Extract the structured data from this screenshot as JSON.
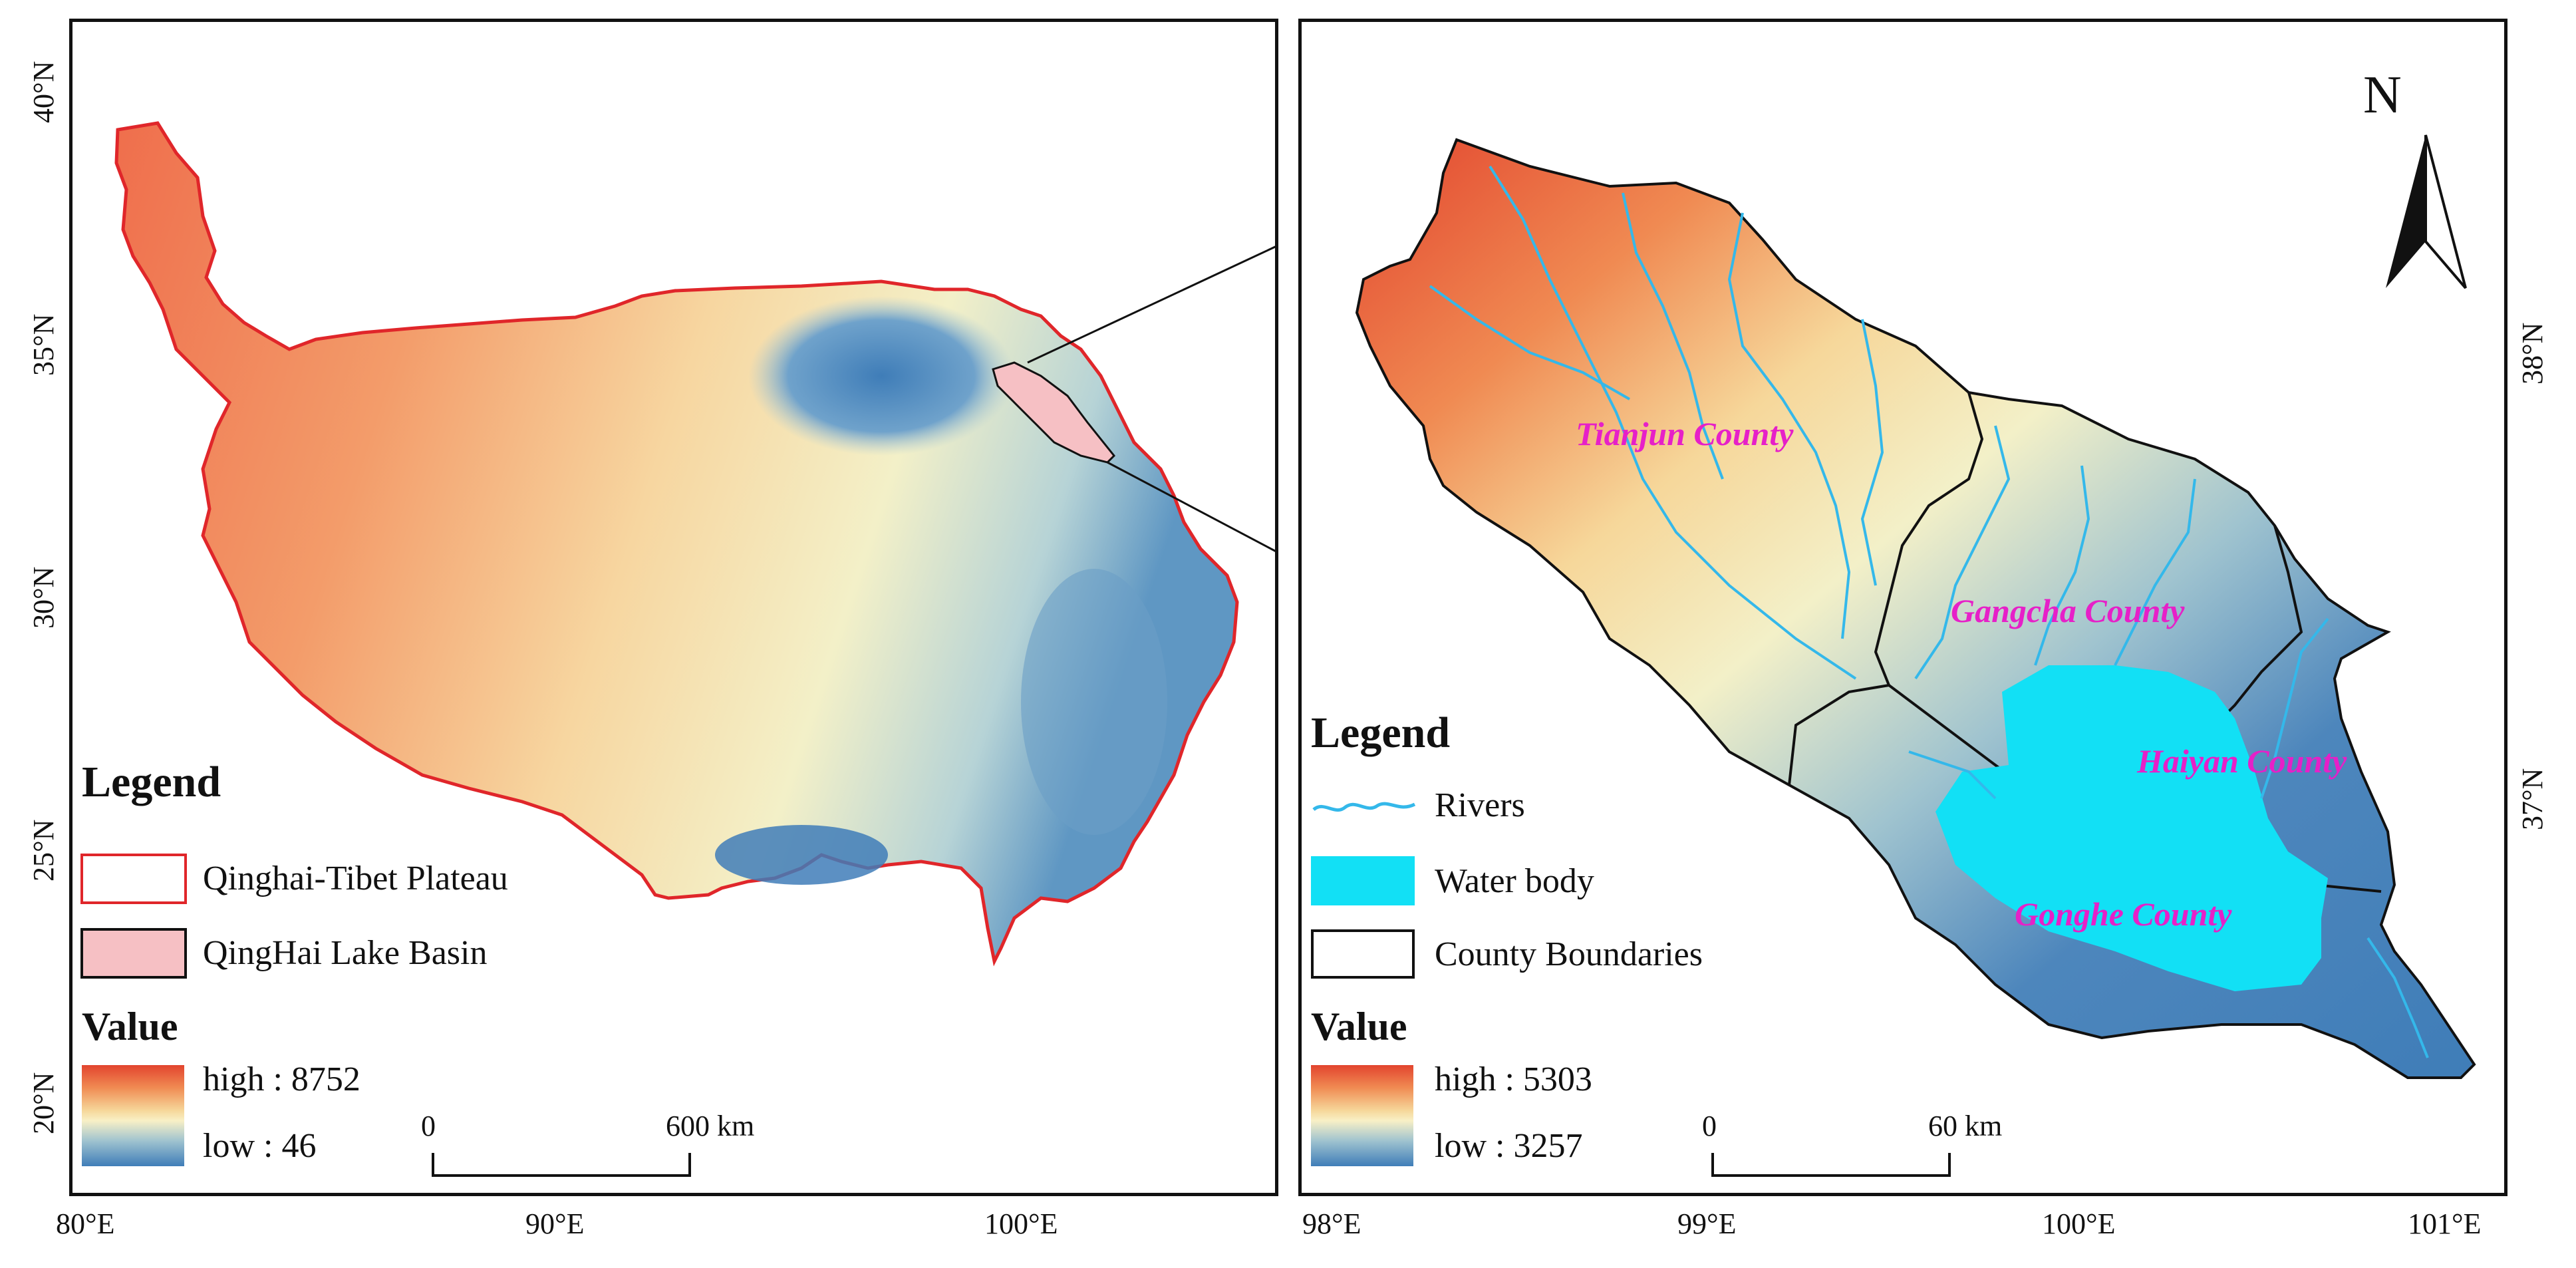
{
  "left_panel": {
    "axis": {
      "y_ticks": [
        "40°N",
        "35°N",
        "30°N",
        "25°N",
        "20°N"
      ],
      "x_ticks": [
        "80°E",
        "90°E",
        "100°E"
      ]
    },
    "legend": {
      "title": "Legend",
      "items": [
        {
          "label": "Qinghai-Tibet Plateau",
          "color": "#e0262a",
          "swatch": "outline-red"
        },
        {
          "label": "QingHai Lake Basin",
          "color": "#f6c0c4",
          "swatch": "pink-fill"
        }
      ]
    },
    "value": {
      "title": "Value",
      "high": "high : 8752",
      "low": "low : 46"
    },
    "scalebar": {
      "start": "0",
      "end": "600 km"
    }
  },
  "right_panel": {
    "axis": {
      "y_ticks": [
        "38°N",
        "37°N"
      ],
      "x_ticks": [
        "98°E",
        "99°E",
        "100°E",
        "101°E"
      ]
    },
    "north_arrow": "N",
    "counties": [
      "Tianjun County",
      "Gangcha County",
      "Haiyan County",
      "Gonghe County"
    ],
    "legend": {
      "title": "Legend",
      "items": [
        {
          "label": "Rivers",
          "color": "#34b8ea",
          "swatch": "river-line"
        },
        {
          "label": "Water body",
          "color": "#12e0f5",
          "swatch": "cyan-fill"
        },
        {
          "label": "County Boundaries",
          "color": "#111111",
          "swatch": "outline-black"
        }
      ]
    },
    "value": {
      "title": "Value",
      "high": "high : 5303",
      "low": "low : 3257"
    },
    "scalebar": {
      "start": "0",
      "end": "60 km"
    }
  }
}
